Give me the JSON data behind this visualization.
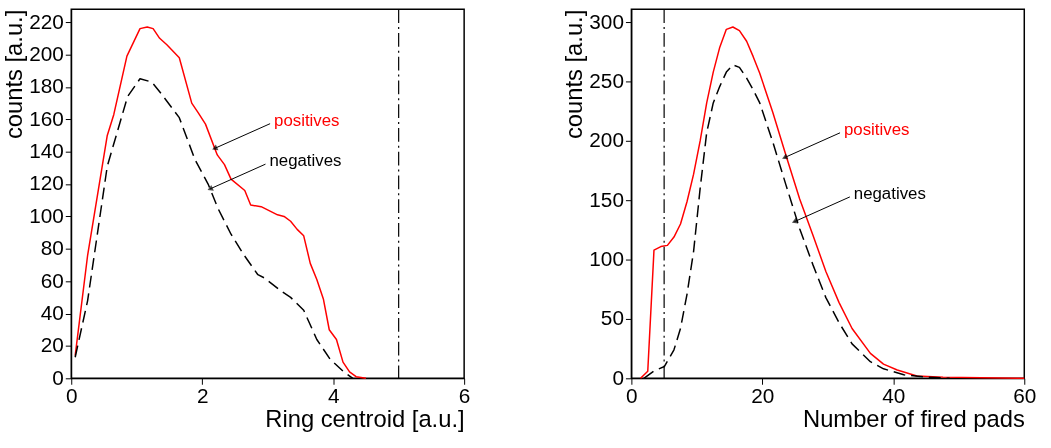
{
  "chart_data": [
    {
      "type": "line",
      "xlabel": "Ring centroid [a.u.]",
      "ylabel": "counts [a.u.]",
      "xlim": [
        0,
        6
      ],
      "ylim": [
        0,
        228
      ],
      "xticks": [
        0,
        2,
        4,
        6
      ],
      "yticks": [
        0,
        20,
        40,
        60,
        80,
        100,
        120,
        140,
        160,
        180,
        200,
        220
      ],
      "grid": false,
      "marker": "none",
      "series": [
        {
          "color": "#ff0000",
          "line_style": "solid",
          "x": [
            0.06,
            0.25,
            0.55,
            0.65,
            0.85,
            1.05,
            1.16,
            1.25,
            1.35,
            1.46,
            1.65,
            1.84,
            1.94,
            2.05,
            2.23,
            2.34,
            2.44,
            2.65,
            2.74,
            2.9,
            3.15,
            3.25,
            3.35,
            3.45,
            3.55,
            3.65,
            3.75,
            3.85,
            3.94,
            4.05,
            4.15,
            4.25,
            4.35,
            4.5
          ],
          "values": [
            14,
            76,
            150,
            163,
            199,
            216,
            217,
            216,
            210,
            206,
            198,
            170,
            164,
            157,
            138,
            132,
            123,
            116,
            107,
            106,
            101,
            100,
            97,
            92,
            88,
            71,
            61,
            49,
            30,
            24,
            10,
            4,
            1,
            0
          ]
        },
        {
          "color": "#000000",
          "line_style": "dashed",
          "x": [
            0.06,
            0.25,
            0.55,
            0.86,
            1.05,
            1.23,
            1.39,
            1.65,
            1.89,
            2.09,
            2.24,
            2.44,
            2.64,
            2.85,
            2.95,
            3.2,
            3.35,
            3.55,
            3.75,
            3.95,
            4.16,
            4.3
          ],
          "values": [
            13,
            48,
            131,
            174,
            185,
            183,
            175,
            161,
            135,
            120,
            105,
            89,
            76,
            64,
            62,
            54,
            50,
            42,
            24,
            12,
            4,
            0
          ]
        }
      ],
      "ref_lines": [
        {
          "axis": "x",
          "value": 5,
          "color": "#000000",
          "line_style": "dashed"
        }
      ],
      "annotations": [
        {
          "text": "positives",
          "x": 2.19,
          "y": 142
        },
        {
          "text": "negatives",
          "x": 2.12,
          "y": 117
        }
      ]
    },
    {
      "type": "line",
      "xlabel": "Number of fired pads",
      "ylabel": "counts [a.u.]",
      "xlim": [
        0,
        60
      ],
      "ylim": [
        0,
        311
      ],
      "xticks": [
        0,
        20,
        40,
        60
      ],
      "yticks": [
        0,
        50,
        100,
        150,
        200,
        250,
        300
      ],
      "grid": false,
      "marker": "none",
      "series": [
        {
          "color": "#ff0000",
          "line_style": "solid",
          "x": [
            1.4,
            2.5,
            3.45,
            4.5,
            5.5,
            6.5,
            7.5,
            8.5,
            9.5,
            10.5,
            11.5,
            12.5,
            13.5,
            14.5,
            15.5,
            16.5,
            17.6,
            18.6,
            19.6,
            21.6,
            23.6,
            25.7,
            27.7,
            29.7,
            31.7,
            33.7,
            36.5,
            38.5,
            40.6,
            43.6,
            47.6,
            60
          ],
          "values": [
            0,
            6,
            108,
            111,
            112,
            119,
            130,
            149,
            172,
            200,
            232,
            258,
            279,
            294,
            296,
            293,
            284,
            271,
            257,
            224,
            188,
            151,
            121,
            90,
            64,
            42,
            21,
            12,
            7,
            2,
            1,
            0
          ]
        },
        {
          "color": "#000000",
          "line_style": "dashed",
          "x": [
            1.9,
            3.4,
            5.05,
            6.5,
            7.5,
            8.5,
            9.5,
            10.5,
            11.5,
            12.5,
            13.5,
            14.5,
            15.5,
            16.5,
            17.6,
            18.6,
            19.6,
            21.6,
            23.6,
            25.7,
            27.7,
            29.7,
            31.7,
            33.7,
            36.5,
            38.5,
            41.6,
            45,
            48.6
          ],
          "values": [
            0,
            6,
            10,
            24,
            42,
            71,
            107,
            160,
            207,
            232,
            246,
            258,
            264,
            262,
            253,
            243,
            232,
            199,
            163,
            126,
            96,
            68,
            47,
            29,
            14,
            8,
            3,
            1,
            0
          ]
        }
      ],
      "ref_lines": [
        {
          "axis": "x",
          "value": 5,
          "color": "#000000",
          "line_style": "dashed"
        }
      ],
      "annotations": [
        {
          "text": "positives",
          "x": 23.4,
          "y": 186
        },
        {
          "text": "negatives",
          "x": 24.9,
          "y": 132
        }
      ]
    }
  ]
}
